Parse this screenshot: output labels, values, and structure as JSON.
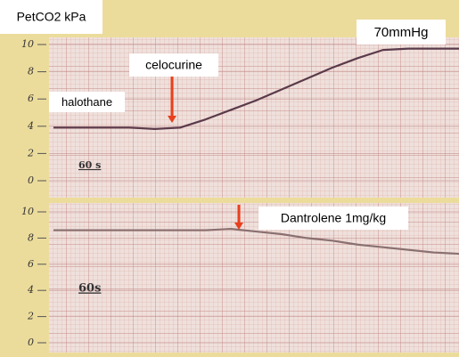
{
  "chart_data": [
    {
      "type": "line",
      "y_label": "PetCO2 kPa",
      "annotations": [
        "70mmHg",
        "celocurine",
        "halothane",
        "60 s"
      ],
      "categories": [
        null,
        null,
        null,
        null,
        null,
        null,
        null,
        null,
        null,
        null,
        null,
        null,
        null,
        null,
        null,
        null,
        null
      ],
      "values": [
        3.9,
        3.9,
        3.9,
        3.9,
        3.8,
        3.9,
        4.5,
        5.2,
        5.9,
        6.7,
        7.5,
        8.3,
        9.0,
        9.6,
        9.7,
        9.7,
        9.7
      ],
      "color": "#5a3a4a",
      "ylim": [
        0,
        10
      ],
      "yticks": [
        0,
        2,
        4,
        6,
        8,
        10
      ],
      "grid": true
    },
    {
      "type": "line",
      "annotations": [
        "Dantrolene 1mg/kg",
        "60s"
      ],
      "categories": [
        null,
        null,
        null,
        null,
        null,
        null,
        null,
        null,
        null,
        null,
        null,
        null,
        null,
        null,
        null,
        null,
        null
      ],
      "values": [
        8.6,
        8.6,
        8.6,
        8.6,
        8.6,
        8.6,
        8.6,
        8.7,
        8.5,
        8.3,
        8.0,
        7.8,
        7.5,
        7.3,
        7.1,
        6.9,
        6.8
      ],
      "color": "#8a7070",
      "ylim": [
        0,
        10
      ],
      "yticks": [
        0,
        2,
        4,
        6,
        8,
        10
      ],
      "grid": true
    }
  ]
}
